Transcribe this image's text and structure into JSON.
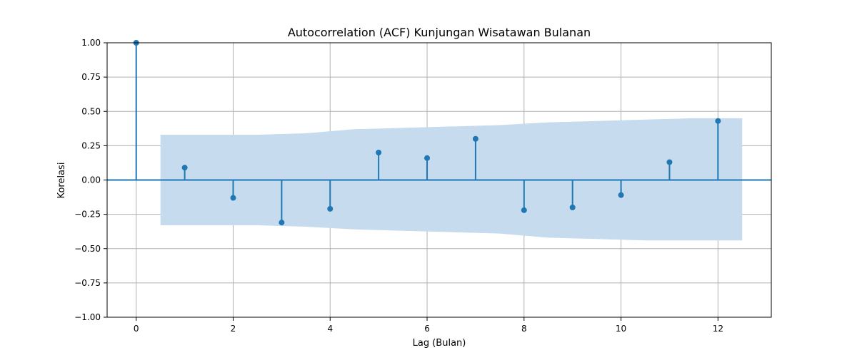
{
  "chart_data": {
    "type": "stem",
    "title": "Autocorrelation (ACF) Kunjungan Wisatawan Bulanan",
    "xlabel": "Lag (Bulan)",
    "ylabel": "Korelasi",
    "xlim": [
      -0.6,
      13.1
    ],
    "ylim": [
      -1.0,
      1.0
    ],
    "xticks": [
      0,
      2,
      4,
      6,
      8,
      10,
      12
    ],
    "xtick_labels": [
      "0",
      "2",
      "4",
      "6",
      "8",
      "10",
      "12"
    ],
    "yticks": [
      -1.0,
      -0.75,
      -0.5,
      -0.25,
      0.0,
      0.25,
      0.5,
      0.75,
      1.0
    ],
    "ytick_labels": [
      "−1.00",
      "−0.75",
      "−0.50",
      "−0.25",
      "0.00",
      "0.25",
      "0.50",
      "0.75",
      "1.00"
    ],
    "grid": true,
    "lags": [
      0,
      1,
      2,
      3,
      4,
      5,
      6,
      7,
      8,
      9,
      10,
      11,
      12
    ],
    "values": [
      1.0,
      0.09,
      -0.13,
      -0.31,
      -0.21,
      0.2,
      0.16,
      0.3,
      -0.22,
      -0.2,
      -0.11,
      0.13,
      0.43
    ],
    "confidence_band": {
      "x": [
        0.5,
        1.5,
        2.5,
        3.5,
        4.5,
        5.5,
        6.5,
        7.5,
        8.5,
        9.5,
        10.5,
        11.5,
        12.5
      ],
      "upper": [
        0.33,
        0.33,
        0.33,
        0.34,
        0.37,
        0.38,
        0.39,
        0.4,
        0.42,
        0.43,
        0.44,
        0.45,
        0.45
      ],
      "lower": [
        -0.33,
        -0.33,
        -0.33,
        -0.34,
        -0.36,
        -0.37,
        -0.38,
        -0.39,
        -0.42,
        -0.43,
        -0.44,
        -0.44,
        -0.44
      ]
    },
    "colors": {
      "stem": "#1f77b4",
      "band": "#c6dbee",
      "grid": "#b0b0b0"
    }
  }
}
